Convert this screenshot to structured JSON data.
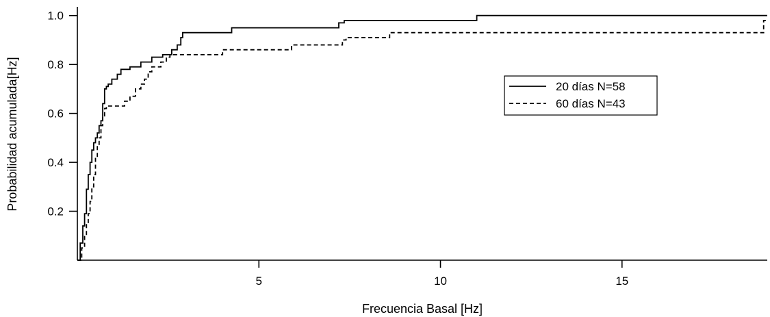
{
  "chart_data": {
    "type": "line",
    "xlabel": "Frecuencia Basal [Hz]",
    "ylabel": "Probabilidad acumulada[Hz]",
    "xlim": [
      0,
      19
    ],
    "ylim": [
      0,
      1.03
    ],
    "xticks": [
      5,
      10,
      15
    ],
    "xtick_labels": [
      "5",
      "10",
      "15"
    ],
    "yticks": [
      0.2,
      0.4,
      0.6,
      0.8,
      1.0
    ],
    "ytick_labels": [
      "0.2",
      "0.4",
      "0.6",
      "0.8",
      "1.0"
    ],
    "legend_position": "right",
    "series": [
      {
        "name": "20 días N=58",
        "style": "solid",
        "x": [
          0.0,
          0.08,
          0.15,
          0.2,
          0.25,
          0.3,
          0.35,
          0.4,
          0.45,
          0.5,
          0.55,
          0.6,
          0.65,
          0.7,
          0.75,
          0.8,
          0.85,
          0.9,
          0.95,
          1.0,
          1.1,
          1.2,
          1.3,
          1.45,
          1.55,
          1.75,
          1.95,
          2.05,
          2.15,
          2.35,
          2.6,
          2.75,
          2.85,
          2.9,
          4.25,
          7.2,
          7.35,
          11.0,
          19.0
        ],
        "y": [
          0.0,
          0.07,
          0.14,
          0.19,
          0.29,
          0.35,
          0.4,
          0.45,
          0.48,
          0.5,
          0.52,
          0.55,
          0.57,
          0.64,
          0.7,
          0.71,
          0.72,
          0.72,
          0.74,
          0.74,
          0.76,
          0.78,
          0.78,
          0.79,
          0.79,
          0.81,
          0.81,
          0.83,
          0.83,
          0.84,
          0.86,
          0.88,
          0.91,
          0.93,
          0.95,
          0.97,
          0.98,
          1.0,
          1.0
        ]
      },
      {
        "name": "60 días N=43",
        "style": "dashed",
        "x": [
          0.0,
          0.12,
          0.2,
          0.25,
          0.3,
          0.35,
          0.4,
          0.45,
          0.5,
          0.55,
          0.6,
          0.65,
          0.7,
          0.75,
          0.8,
          0.85,
          0.9,
          1.3,
          1.45,
          1.6,
          1.75,
          1.85,
          1.95,
          2.05,
          2.3,
          2.45,
          2.55,
          2.6,
          2.7,
          2.75,
          2.85,
          4.0,
          4.2,
          5.9,
          6.0,
          7.3,
          7.4,
          8.6,
          18.9,
          19.0
        ],
        "y": [
          0.0,
          0.05,
          0.1,
          0.15,
          0.19,
          0.24,
          0.3,
          0.35,
          0.42,
          0.47,
          0.5,
          0.55,
          0.59,
          0.62,
          0.63,
          0.63,
          0.63,
          0.65,
          0.67,
          0.7,
          0.72,
          0.74,
          0.77,
          0.79,
          0.81,
          0.83,
          0.84,
          0.84,
          0.84,
          0.84,
          0.84,
          0.86,
          0.86,
          0.88,
          0.88,
          0.9,
          0.91,
          0.93,
          0.98,
          0.98
        ]
      }
    ]
  }
}
